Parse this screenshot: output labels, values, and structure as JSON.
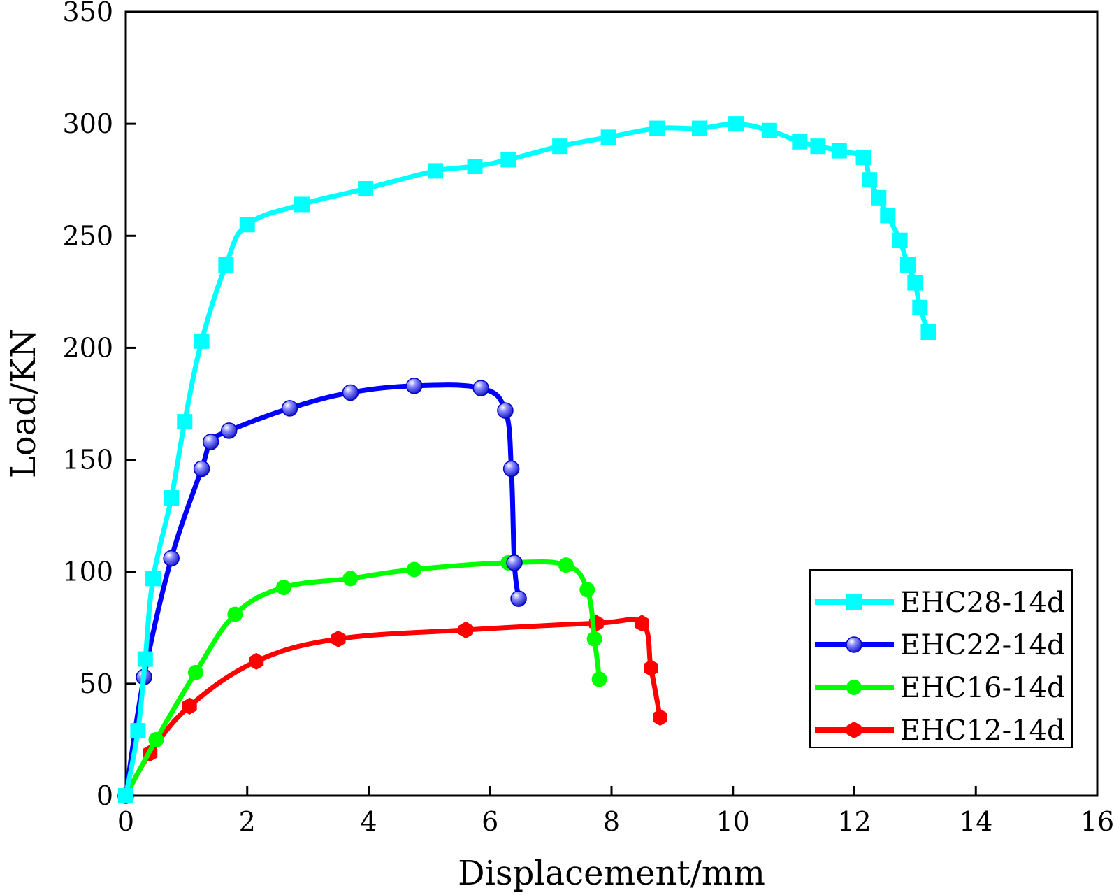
{
  "chart_data": {
    "type": "line",
    "title": "",
    "xlabel": "Displacement/mm",
    "ylabel": "Load/KN",
    "xlim": [
      0,
      16
    ],
    "ylim": [
      0,
      350
    ],
    "xticks": [
      0,
      2,
      4,
      6,
      8,
      10,
      12,
      14,
      16
    ],
    "yticks": [
      0,
      50,
      100,
      150,
      200,
      250,
      300,
      350
    ],
    "grid": false,
    "legend_position": "bottom-right",
    "series": [
      {
        "name": "EHC28-14d",
        "color": "#00FFFF",
        "marker": "square",
        "x": [
          0,
          0.2,
          0.32,
          0.45,
          0.75,
          0.97,
          1.25,
          1.65,
          2.0,
          2.9,
          3.95,
          5.1,
          5.75,
          6.3,
          7.15,
          7.95,
          8.75,
          9.45,
          10.05,
          10.6,
          11.1,
          11.4,
          11.75,
          12.15,
          12.25,
          12.4,
          12.55,
          12.75,
          12.88,
          13.0,
          13.08,
          13.22
        ],
        "y": [
          0,
          29,
          61,
          97,
          133,
          167,
          203,
          237,
          255,
          264,
          271,
          279,
          281,
          284,
          290,
          294,
          298,
          298,
          300,
          297,
          292,
          290,
          288,
          285,
          275,
          267,
          259,
          248,
          237,
          229,
          218,
          207
        ]
      },
      {
        "name": "EHC22-14d",
        "color": "#0000FF",
        "marker": "sphere",
        "x": [
          0,
          0.3,
          0.75,
          1.25,
          1.4,
          1.7,
          2.7,
          3.7,
          4.75,
          5.85,
          6.25,
          6.35,
          6.4,
          6.47
        ],
        "y": [
          0,
          53,
          106,
          146,
          158,
          163,
          173,
          180,
          183,
          182,
          172,
          146,
          104,
          88
        ]
      },
      {
        "name": "EHC16-14d",
        "color": "#00FF00",
        "marker": "circle",
        "x": [
          0,
          0.5,
          1.15,
          1.8,
          2.6,
          3.7,
          4.75,
          6.3,
          7.25,
          7.6,
          7.72,
          7.8
        ],
        "y": [
          0,
          25,
          55,
          81,
          93,
          97,
          101,
          104,
          103,
          92,
          70,
          52
        ]
      },
      {
        "name": "EHC12-14d",
        "color": "#FF0000",
        "marker": "hexagon",
        "x": [
          0,
          0.4,
          1.05,
          2.15,
          3.5,
          5.6,
          7.75,
          8.5,
          8.65,
          8.8
        ],
        "y": [
          0,
          19,
          40,
          60,
          70,
          74,
          77,
          77,
          57,
          35
        ]
      }
    ]
  }
}
